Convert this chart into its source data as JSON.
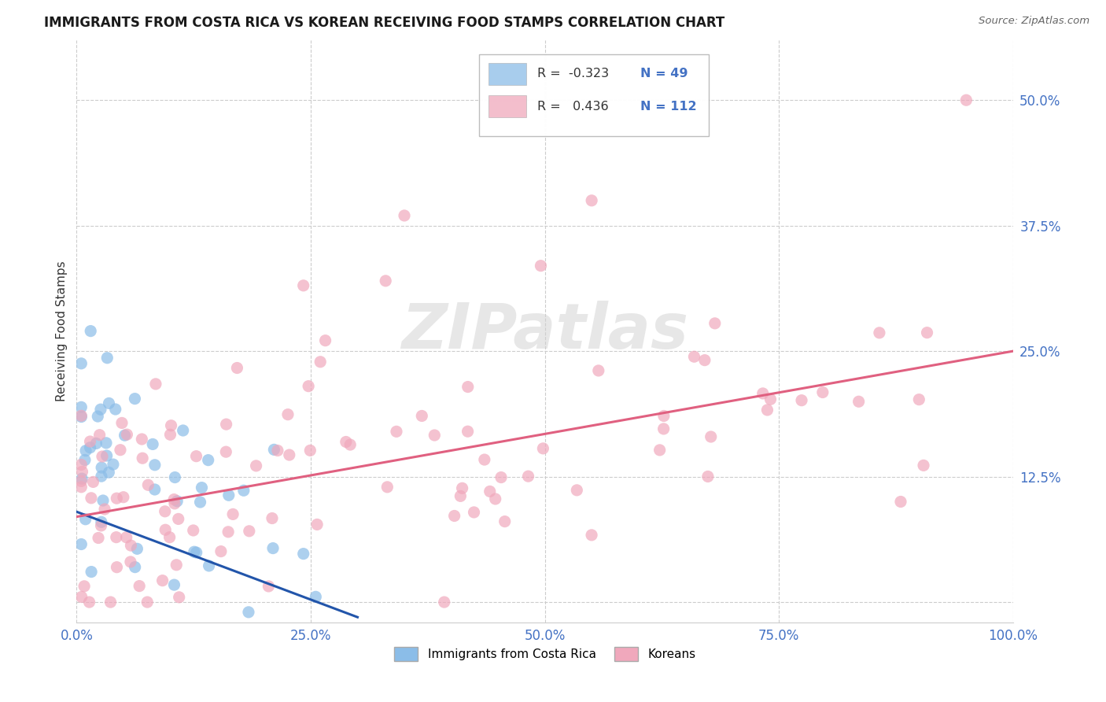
{
  "title": "IMMIGRANTS FROM COSTA RICA VS KOREAN RECEIVING FOOD STAMPS CORRELATION CHART",
  "source": "Source: ZipAtlas.com",
  "ylabel": "Receiving Food Stamps",
  "xlim": [
    0.0,
    1.0
  ],
  "ylim": [
    -0.02,
    0.56
  ],
  "ytick_positions": [
    0.0,
    0.125,
    0.25,
    0.375,
    0.5
  ],
  "ytick_labels": [
    "",
    "12.5%",
    "25.0%",
    "37.5%",
    "50.0%"
  ],
  "xtick_positions": [
    0.0,
    0.25,
    0.5,
    0.75,
    1.0
  ],
  "xtick_labels": [
    "0.0%",
    "25.0%",
    "50.0%",
    "75.0%",
    "100.0%"
  ],
  "blue_color": "#8bbde8",
  "pink_color": "#f0a8bc",
  "blue_line_color": "#2255aa",
  "pink_line_color": "#e06080",
  "legend_R_blue": "-0.323",
  "legend_N_blue": "49",
  "legend_R_pink": "0.436",
  "legend_N_pink": "112",
  "legend_label_blue": "Immigrants from Costa Rica",
  "legend_label_pink": "Koreans",
  "watermark": "ZIPatlas",
  "title_fontsize": 12,
  "blue_line_x0": 0.0,
  "blue_line_y0": 0.09,
  "blue_line_x1": 0.3,
  "blue_line_y1": -0.015,
  "pink_line_x0": 0.0,
  "pink_line_y0": 0.085,
  "pink_line_x1": 1.0,
  "pink_line_y1": 0.25
}
